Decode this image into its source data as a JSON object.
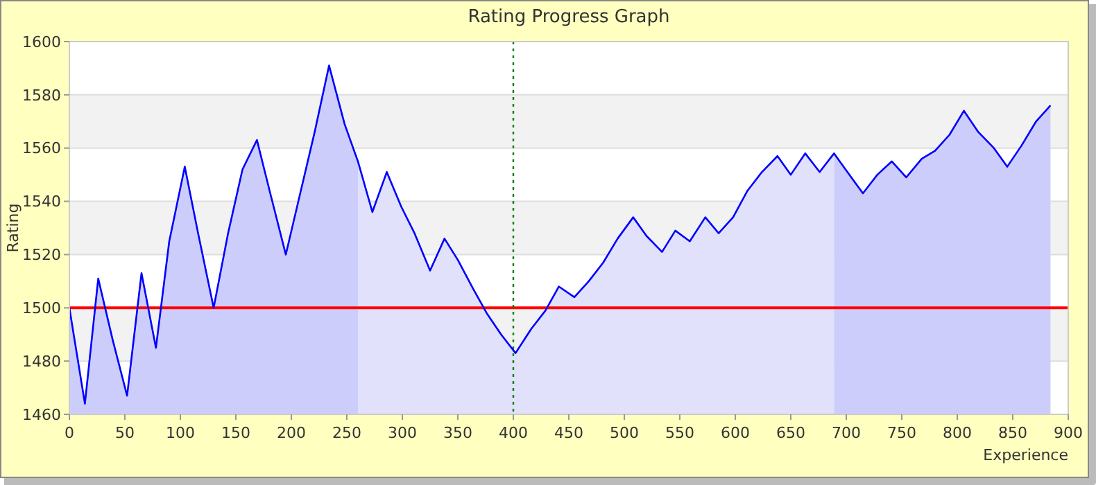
{
  "chart_data": {
    "type": "line",
    "title": "Rating Progress Graph",
    "xlabel": "Experience",
    "ylabel": "Rating",
    "xlim": [
      0,
      900
    ],
    "xticks": [
      0,
      50,
      100,
      150,
      200,
      250,
      300,
      350,
      400,
      450,
      500,
      550,
      600,
      650,
      700,
      750,
      800,
      850,
      900
    ],
    "ylim": [
      1460,
      1600
    ],
    "yticks": [
      1460,
      1480,
      1500,
      1520,
      1540,
      1560,
      1580,
      1600
    ],
    "grid": "y",
    "marker": "none",
    "line_style": "solid",
    "ref_lines": [
      {
        "axis": "y",
        "value": 1500,
        "color": "#ff0000",
        "line_style": "solid"
      },
      {
        "axis": "x",
        "value": 400,
        "color": "#008000",
        "line_style": "dotted"
      }
    ],
    "series": [
      {
        "type": "area",
        "color": "#cdcdfb",
        "x": [
          0,
          14,
          26,
          39,
          52,
          65,
          78,
          90,
          104,
          116,
          130,
          143,
          156,
          169,
          181,
          195,
          208,
          221,
          234,
          248,
          260
        ],
        "values": [
          1500,
          1464,
          1511,
          1488,
          1467,
          1513,
          1485,
          1525,
          1553,
          1528,
          1500,
          1528,
          1552,
          1563,
          1543,
          1520,
          1543,
          1566,
          1591,
          1569,
          1555
        ]
      },
      {
        "type": "area",
        "color": "#e1e1fb",
        "x": [
          260,
          273,
          286,
          299,
          311,
          325,
          338,
          350,
          364,
          376,
          389,
          402,
          416,
          429,
          441,
          455,
          468,
          481,
          494,
          508,
          520,
          534,
          546,
          559,
          573,
          585,
          598,
          611,
          624,
          638,
          650,
          663,
          676,
          689
        ],
        "values": [
          1555,
          1536,
          1551,
          1538,
          1528,
          1514,
          1526,
          1518,
          1507,
          1498,
          1490,
          1483,
          1492,
          1499,
          1508,
          1504,
          1510,
          1517,
          1526,
          1534,
          1527,
          1521,
          1529,
          1525,
          1534,
          1528,
          1534,
          1544,
          1551,
          1557,
          1550,
          1558,
          1551,
          1558
        ]
      },
      {
        "type": "area",
        "color": "#cdcdfb",
        "x": [
          689,
          701,
          715,
          728,
          741,
          754,
          768,
          780,
          793,
          806,
          819,
          833,
          845,
          858,
          871,
          884
        ],
        "values": [
          1558,
          1551,
          1543,
          1550,
          1555,
          1549,
          1556,
          1559,
          1565,
          1574,
          1566,
          1560,
          1553,
          1561,
          1570,
          1576
        ]
      },
      {
        "color": "#0000ff",
        "x": [
          0,
          14,
          26,
          39,
          52,
          65,
          78,
          90,
          104,
          116,
          130,
          143,
          156,
          169,
          181,
          195,
          208,
          221,
          234,
          248,
          260,
          273,
          286,
          299,
          311,
          325,
          338,
          350,
          364,
          376,
          389,
          402,
          416,
          429,
          441,
          455,
          468,
          481,
          494,
          508,
          520,
          534,
          546,
          559,
          573,
          585,
          598,
          611,
          624,
          638,
          650,
          663,
          676,
          689,
          701,
          715,
          728,
          741,
          754,
          768,
          780,
          793,
          806,
          819,
          833,
          845,
          858,
          871,
          884
        ],
        "values": [
          1500,
          1464,
          1511,
          1488,
          1467,
          1513,
          1485,
          1525,
          1553,
          1528,
          1500,
          1528,
          1552,
          1563,
          1543,
          1520,
          1543,
          1566,
          1591,
          1569,
          1555,
          1536,
          1551,
          1538,
          1528,
          1514,
          1526,
          1518,
          1507,
          1498,
          1490,
          1483,
          1492,
          1499,
          1508,
          1504,
          1510,
          1517,
          1526,
          1534,
          1527,
          1521,
          1529,
          1525,
          1534,
          1528,
          1534,
          1544,
          1551,
          1557,
          1550,
          1558,
          1551,
          1558,
          1551,
          1543,
          1550,
          1555,
          1549,
          1556,
          1559,
          1565,
          1574,
          1566,
          1560,
          1553,
          1561,
          1570,
          1576
        ]
      }
    ]
  }
}
